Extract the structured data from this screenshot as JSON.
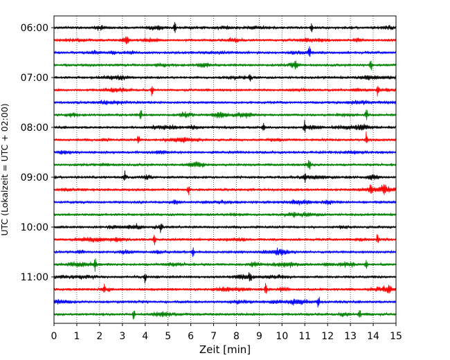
{
  "chart_data": {
    "type": "line",
    "xlabel": "Zeit  [min]",
    "ylabel": "UTC (Lokalzeit = UTC + 02:00)",
    "xlim": [
      0,
      15
    ],
    "x_ticks": [
      "0",
      "1",
      "2",
      "3",
      "4",
      "5",
      "6",
      "7",
      "8",
      "9",
      "10",
      "11",
      "12",
      "13",
      "14",
      "15"
    ],
    "y_ticks": [
      "06:00",
      "07:00",
      "08:00",
      "09:00",
      "10:00",
      "11:00"
    ],
    "vertical_grid": true,
    "grid_style": "dotted",
    "traces_per_hour": 4,
    "minutes_per_trace": 15,
    "colors": [
      "#000000",
      "#ff0000",
      "#0000ff",
      "#008000"
    ],
    "traces": [
      {
        "start": "06:00",
        "events": [
          5.3,
          11.3
        ]
      },
      {
        "start": "06:15",
        "events": [
          3.2
        ]
      },
      {
        "start": "06:30",
        "events": [
          11.2
        ]
      },
      {
        "start": "06:45",
        "events": [
          10.6,
          13.9
        ]
      },
      {
        "start": "07:00",
        "events": [
          8.6
        ]
      },
      {
        "start": "07:15",
        "events": [
          4.3,
          14.2
        ]
      },
      {
        "start": "07:30",
        "events": []
      },
      {
        "start": "07:45",
        "events": [
          3.8,
          13.7
        ]
      },
      {
        "start": "08:00",
        "events": [
          11.0,
          9.2
        ]
      },
      {
        "start": "08:15",
        "events": [
          3.7,
          13.7
        ]
      },
      {
        "start": "08:30",
        "events": []
      },
      {
        "start": "08:45",
        "events": [
          11.2
        ]
      },
      {
        "start": "09:00",
        "events": [
          11.0,
          3.1
        ]
      },
      {
        "start": "09:15",
        "events": [
          5.9,
          13.9,
          14.5
        ]
      },
      {
        "start": "09:30",
        "events": []
      },
      {
        "start": "09:45",
        "events": []
      },
      {
        "start": "10:00",
        "events": [
          4.7
        ]
      },
      {
        "start": "10:15",
        "events": [
          14.2,
          4.4
        ]
      },
      {
        "start": "10:30",
        "events": [
          6.1
        ]
      },
      {
        "start": "10:45",
        "events": [
          13.7,
          1.8
        ]
      },
      {
        "start": "11:00",
        "events": [
          8.6,
          4.0
        ]
      },
      {
        "start": "11:15",
        "events": [
          9.3,
          14.7,
          2.2
        ]
      },
      {
        "start": "11:30",
        "events": [
          11.6
        ]
      },
      {
        "start": "11:45",
        "events": [
          3.5,
          13.4
        ]
      }
    ]
  }
}
